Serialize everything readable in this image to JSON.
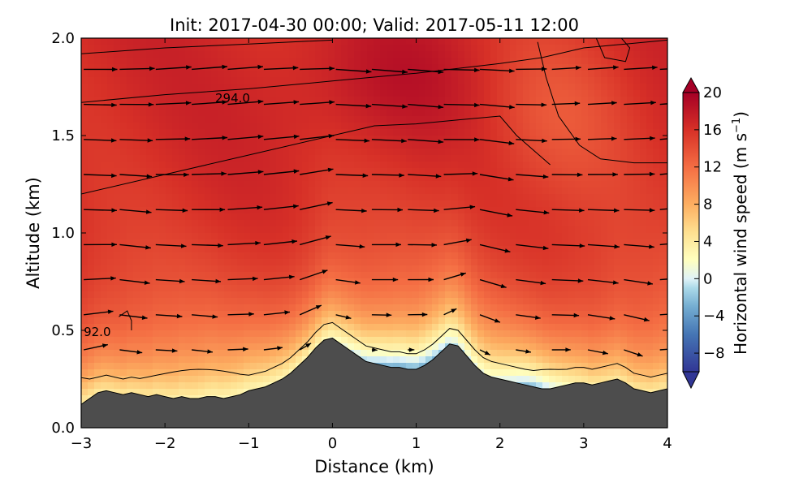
{
  "chart_data": {
    "type": "heatmap",
    "title": "Init: 2017-04-30 00:00; Valid: 2017-05-11 12:00",
    "xlabel": "Distance (km)",
    "ylabel": "Altitude (km)",
    "xlim": [
      -3,
      4
    ],
    "ylim": [
      0,
      2
    ],
    "xticks": [
      "−3",
      "−2",
      "−1",
      "0",
      "1",
      "2",
      "3",
      "4"
    ],
    "xtick_values": [
      -3,
      -2,
      -1,
      0,
      1,
      2,
      3,
      4
    ],
    "yticks": [
      "0.0",
      "0.5",
      "1.0",
      "1.5",
      "2.0"
    ],
    "ytick_values": [
      0,
      0.5,
      1,
      1.5,
      2
    ],
    "colorbar": {
      "label": "Horizontal wind speed (m s",
      "label_sup": "−1",
      "label_end": ")",
      "range": [
        -10,
        20
      ],
      "extend": "both",
      "ticks": [
        "20",
        "16",
        "12",
        "8",
        "4",
        "0",
        "−4",
        "−8"
      ],
      "tick_values": [
        20,
        16,
        12,
        8,
        4,
        0,
        -4,
        -8
      ],
      "stops": [
        {
          "v": -10,
          "color": "#313695"
        },
        {
          "v": -6,
          "color": "#4575b4"
        },
        {
          "v": -3,
          "color": "#74add1"
        },
        {
          "v": -1,
          "color": "#abd9e9"
        },
        {
          "v": 0,
          "color": "#e0f3f8"
        },
        {
          "v": 2,
          "color": "#ffffbf"
        },
        {
          "v": 5,
          "color": "#fee090"
        },
        {
          "v": 8,
          "color": "#fdae61"
        },
        {
          "v": 12,
          "color": "#f46d43"
        },
        {
          "v": 16,
          "color": "#d73027"
        },
        {
          "v": 20,
          "color": "#a50026"
        }
      ]
    },
    "contour_labels": [
      {
        "text": "294.0",
        "x": -1.4,
        "y": 1.67
      },
      {
        "text": "92.0",
        "x": -2.97,
        "y": 0.47
      }
    ],
    "terrain": {
      "color": "#4d4d4d",
      "x": [
        -3.0,
        -2.9,
        -2.8,
        -2.7,
        -2.6,
        -2.5,
        -2.4,
        -2.3,
        -2.2,
        -2.1,
        -2.0,
        -1.9,
        -1.8,
        -1.7,
        -1.6,
        -1.5,
        -1.4,
        -1.3,
        -1.2,
        -1.1,
        -1.0,
        -0.9,
        -0.8,
        -0.7,
        -0.6,
        -0.5,
        -0.4,
        -0.3,
        -0.2,
        -0.1,
        0.0,
        0.1,
        0.2,
        0.3,
        0.4,
        0.5,
        0.6,
        0.7,
        0.8,
        0.9,
        1.0,
        1.1,
        1.2,
        1.3,
        1.4,
        1.5,
        1.6,
        1.7,
        1.8,
        1.9,
        2.0,
        2.1,
        2.2,
        2.3,
        2.4,
        2.5,
        2.6,
        2.7,
        2.8,
        2.9,
        3.0,
        3.1,
        3.2,
        3.3,
        3.4,
        3.5,
        3.6,
        3.7,
        3.8,
        3.9,
        4.0
      ],
      "y": [
        0.12,
        0.15,
        0.18,
        0.19,
        0.18,
        0.17,
        0.18,
        0.17,
        0.16,
        0.17,
        0.16,
        0.15,
        0.16,
        0.15,
        0.15,
        0.16,
        0.16,
        0.15,
        0.16,
        0.17,
        0.19,
        0.2,
        0.21,
        0.23,
        0.25,
        0.28,
        0.32,
        0.36,
        0.41,
        0.45,
        0.46,
        0.43,
        0.4,
        0.37,
        0.34,
        0.33,
        0.32,
        0.31,
        0.31,
        0.3,
        0.3,
        0.32,
        0.35,
        0.39,
        0.43,
        0.42,
        0.37,
        0.32,
        0.28,
        0.26,
        0.25,
        0.24,
        0.23,
        0.22,
        0.21,
        0.2,
        0.2,
        0.21,
        0.22,
        0.23,
        0.23,
        0.22,
        0.23,
        0.24,
        0.25,
        0.23,
        0.2,
        0.19,
        0.18,
        0.19,
        0.2
      ]
    },
    "wind_field": {
      "description_units": "u, w in m s^-1 sampled on grid",
      "x": [
        -2.97,
        -2.54,
        -2.11,
        -1.68,
        -1.25,
        -0.82,
        -0.39,
        0.04,
        0.47,
        0.9,
        1.33,
        1.76,
        2.19,
        2.62,
        3.05,
        3.48,
        3.91
      ],
      "y": [
        0.4,
        0.58,
        0.76,
        0.94,
        1.12,
        1.3,
        1.48,
        1.66,
        1.84
      ]
    }
  }
}
